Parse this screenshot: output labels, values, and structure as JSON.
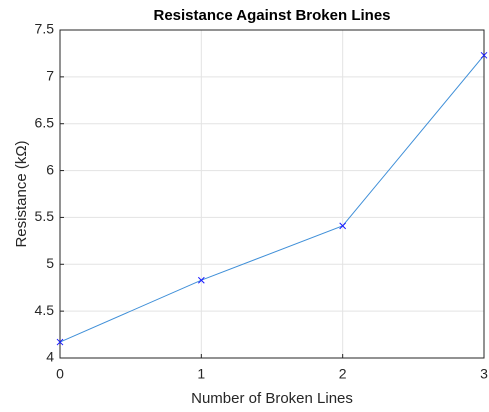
{
  "chart_data": {
    "type": "line",
    "title": "Resistance Against Broken Lines",
    "xlabel": "Number of Broken Lines",
    "ylabel": "Resistance (kΩ)",
    "x": [
      0,
      1,
      2,
      3
    ],
    "series": [
      {
        "name": "Resistance",
        "color": "#3f8fd8",
        "marker_color": "#1a1aff",
        "marker": "x",
        "values": [
          4.17,
          4.83,
          5.41,
          7.23
        ]
      }
    ],
    "xlim": [
      0,
      3
    ],
    "xticks": [
      0,
      1,
      2,
      3
    ],
    "ylim": [
      4,
      7.5
    ],
    "yticks": [
      4,
      4.5,
      5,
      5.5,
      6,
      6.5,
      7,
      7.5
    ],
    "grid": true
  }
}
